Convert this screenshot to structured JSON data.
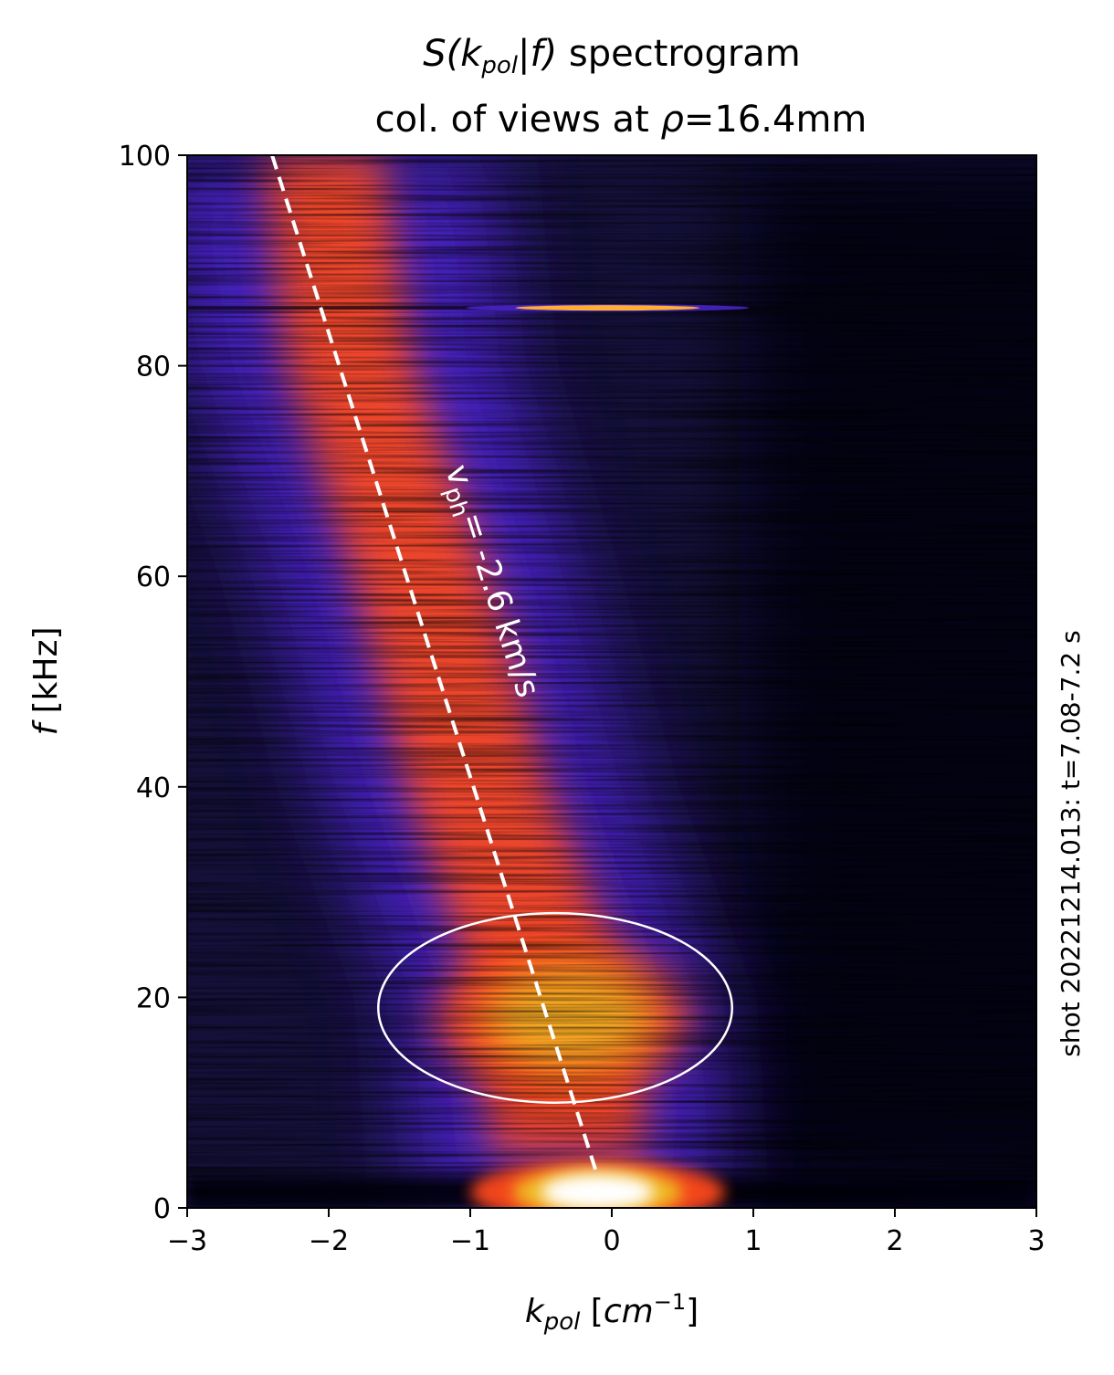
{
  "chart_data": {
    "type": "heatmap",
    "title": {
      "line1_prefix": "S(k",
      "line1_sub": "pol",
      "line1_mid": "|f)",
      "line1_suffix": " spectrogram",
      "line2_prefix": "col. of views at ",
      "line2_rho": "ρ",
      "line2_suffix": "=16.4mm"
    },
    "xlabel": {
      "symbol": "k",
      "sub": "pol",
      "unit_open": " [",
      "unit_cm": "cm",
      "unit_sup": "−1",
      "unit_close": "]"
    },
    "ylabel": {
      "symbol": "f",
      "unit": " [kHz]"
    },
    "xlim": [
      -3,
      3
    ],
    "ylim": [
      0,
      100
    ],
    "x_ticks": [
      "−3",
      "−2",
      "−1",
      "0",
      "1",
      "2",
      "3"
    ],
    "x_tick_values": [
      -3,
      -2,
      -1,
      0,
      1,
      2,
      3
    ],
    "y_ticks": [
      "0",
      "20",
      "40",
      "60",
      "80",
      "100"
    ],
    "y_tick_values": [
      0,
      20,
      40,
      60,
      80,
      100
    ],
    "side_label": "shot 20221214.013: t=7.08-7.2 s",
    "colormap": [
      "#05030c",
      "#14103a",
      "#4a24c8",
      "#ff4a1e",
      "#f0b820",
      "#ffffff"
    ],
    "ridge": {
      "description": "main spectral ridge k(f)",
      "f": [
        0,
        20,
        40,
        60,
        80,
        100
      ],
      "k": [
        -0.3,
        -0.4,
        -0.95,
        -1.35,
        -1.85,
        -2.05
      ]
    },
    "dc_peak": {
      "k": 0.0,
      "f": 1.5,
      "color": "#ffffff"
    },
    "line_peak": {
      "k": 0.0,
      "f": 85.5,
      "color": "#ffb030"
    },
    "phase_velocity_line": {
      "points": [
        [
          -2.4,
          100
        ],
        [
          -0.1,
          3
        ]
      ],
      "style": "dashed",
      "color": "#ffffff",
      "label_prefix": "v",
      "label_sub": "ph",
      "label_suffix": "= -2.6 km/s"
    },
    "ellipse": {
      "center": [
        -0.4,
        19
      ],
      "radius_k": 1.25,
      "radius_f": 9,
      "color": "#ffffff"
    }
  }
}
